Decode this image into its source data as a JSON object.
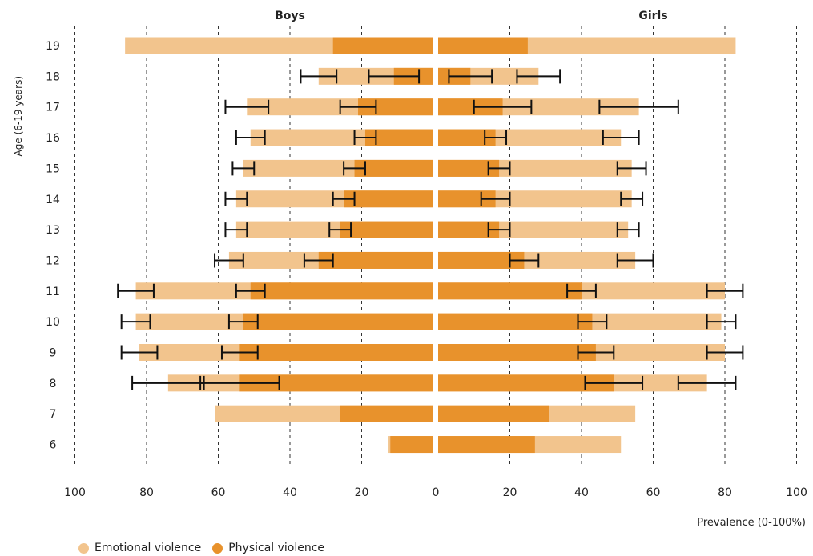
{
  "chart_data": {
    "type": "bar",
    "orientation": "horizontal-butterfly",
    "panels": [
      "Boys",
      "Girls"
    ],
    "ylabel": "Age (6-19 years)",
    "xlabel": "Prevalence (0-100%)",
    "categories": [
      "19",
      "18",
      "17",
      "16",
      "15",
      "14",
      "13",
      "12",
      "11",
      "10",
      "9",
      "8",
      "7",
      "6"
    ],
    "x_ticks": [
      "100",
      "80",
      "60",
      "40",
      "20",
      "0",
      "20",
      "40",
      "60",
      "80",
      "100"
    ],
    "xlim": [
      0,
      100
    ],
    "grid": "vertical-dashed",
    "legend_position": "bottom-left",
    "series": [
      {
        "name": "Emotional violence",
        "color": "#f2c48d",
        "boys": [
          86,
          32,
          52,
          51,
          53,
          55,
          55,
          57,
          83,
          83,
          82,
          74,
          61,
          12.5
        ],
        "girls": [
          83,
          28,
          56,
          51,
          54,
          54,
          53,
          55,
          80,
          79,
          80,
          75,
          55,
          51
        ],
        "boys_ci": [
          null,
          [
            27,
            37
          ],
          [
            46,
            58
          ],
          [
            47,
            55
          ],
          [
            50,
            56
          ],
          [
            52,
            58
          ],
          [
            52,
            58
          ],
          [
            53,
            61
          ],
          [
            78,
            88
          ],
          [
            79,
            87
          ],
          [
            77,
            87
          ],
          [
            64,
            84
          ],
          null,
          null
        ],
        "girls_ci": [
          null,
          [
            22,
            34
          ],
          [
            45,
            67
          ],
          [
            46,
            56
          ],
          [
            50,
            58
          ],
          [
            51,
            57
          ],
          [
            50,
            56
          ],
          [
            50,
            60
          ],
          [
            75,
            85
          ],
          [
            75,
            83
          ],
          [
            75,
            85
          ],
          [
            67,
            83
          ],
          null,
          null
        ]
      },
      {
        "name": "Physical violence",
        "color": "#e8922c",
        "boys": [
          28,
          11,
          21,
          19,
          22,
          25,
          26,
          32,
          51,
          53,
          54,
          54,
          26,
          12
        ],
        "girls": [
          25,
          9,
          18,
          16,
          17,
          16,
          17,
          24,
          40,
          43,
          44,
          49,
          31,
          27
        ],
        "boys_ci": [
          null,
          [
            4,
            18
          ],
          [
            16,
            26
          ],
          [
            16,
            22
          ],
          [
            19,
            25
          ],
          [
            22,
            28
          ],
          [
            23,
            29
          ],
          [
            28,
            36
          ],
          [
            47,
            55
          ],
          [
            49,
            57
          ],
          [
            49,
            59
          ],
          [
            43,
            65
          ],
          null,
          null
        ],
        "girls_ci": [
          null,
          [
            3,
            15
          ],
          [
            10,
            26
          ],
          [
            13,
            19
          ],
          [
            14,
            20
          ],
          [
            12,
            20
          ],
          [
            14,
            20
          ],
          [
            20,
            28
          ],
          [
            36,
            44
          ],
          [
            39,
            47
          ],
          [
            39,
            49
          ],
          [
            41,
            57
          ],
          null,
          null
        ]
      }
    ]
  }
}
